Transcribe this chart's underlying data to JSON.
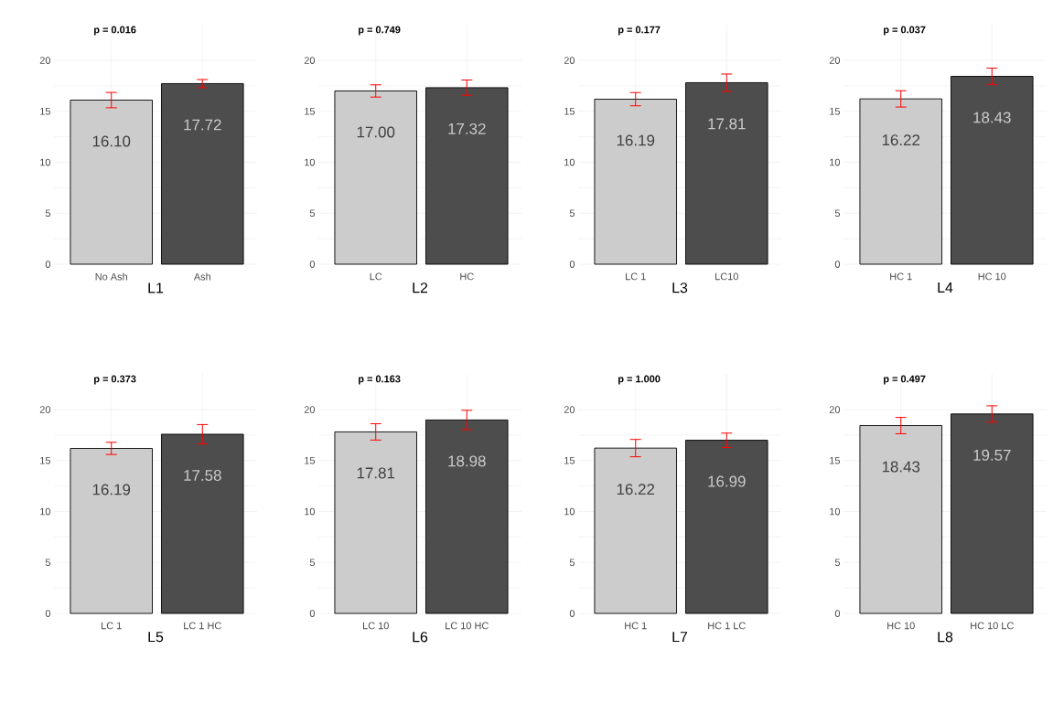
{
  "chart_data": [
    {
      "type": "bar",
      "categories": [
        "No Ash",
        "Ash"
      ],
      "values": [
        16.1,
        17.72
      ],
      "value_labels": [
        "16.10",
        "17.72"
      ],
      "colors": [
        "#cccccc",
        "#4d4d4d"
      ],
      "errors": [
        0.75,
        0.4
      ],
      "xlabel": "L1",
      "annotations": [
        "p = 0.016"
      ],
      "ylim": [
        0,
        23.5
      ],
      "yticks": [
        0,
        5,
        10,
        15,
        20
      ],
      "grid": true
    },
    {
      "type": "bar",
      "categories": [
        "LC",
        "HC"
      ],
      "values": [
        17.0,
        17.32
      ],
      "value_labels": [
        "17.00",
        "17.32"
      ],
      "colors": [
        "#cccccc",
        "#4d4d4d"
      ],
      "errors": [
        0.6,
        0.75
      ],
      "xlabel": "L2",
      "annotations": [
        "p = 0.749"
      ],
      "ylim": [
        0,
        23.5
      ],
      "yticks": [
        0,
        5,
        10,
        15,
        20
      ],
      "grid": true
    },
    {
      "type": "bar",
      "categories": [
        "LC 1",
        "LC10"
      ],
      "values": [
        16.19,
        17.81
      ],
      "value_labels": [
        "16.19",
        "17.81"
      ],
      "colors": [
        "#cccccc",
        "#4d4d4d"
      ],
      "errors": [
        0.65,
        0.85
      ],
      "xlabel": "L3",
      "annotations": [
        "p = 0.177"
      ],
      "ylim": [
        0,
        23.5
      ],
      "yticks": [
        0,
        5,
        10,
        15,
        20
      ],
      "grid": true
    },
    {
      "type": "bar",
      "categories": [
        "HC 1",
        "HC 10"
      ],
      "values": [
        16.22,
        18.43
      ],
      "value_labels": [
        "16.22",
        "18.43"
      ],
      "colors": [
        "#cccccc",
        "#4d4d4d"
      ],
      "errors": [
        0.8,
        0.8
      ],
      "xlabel": "L4",
      "annotations": [
        "p = 0.037"
      ],
      "ylim": [
        0,
        23.5
      ],
      "yticks": [
        0,
        5,
        10,
        15,
        20
      ],
      "grid": true
    },
    {
      "type": "bar",
      "categories": [
        "LC 1",
        "LC 1 HC"
      ],
      "values": [
        16.19,
        17.58
      ],
      "value_labels": [
        "16.19",
        "17.58"
      ],
      "colors": [
        "#cccccc",
        "#4d4d4d"
      ],
      "errors": [
        0.6,
        0.95
      ],
      "xlabel": "L5",
      "annotations": [
        "p = 0.373"
      ],
      "ylim": [
        0,
        23.5
      ],
      "yticks": [
        0,
        5,
        10,
        15,
        20
      ],
      "grid": true
    },
    {
      "type": "bar",
      "categories": [
        "LC 10",
        "LC 10 HC"
      ],
      "values": [
        17.81,
        18.98
      ],
      "value_labels": [
        "17.81",
        "18.98"
      ],
      "colors": [
        "#cccccc",
        "#4d4d4d"
      ],
      "errors": [
        0.8,
        0.95
      ],
      "xlabel": "L6",
      "annotations": [
        "p = 0.163"
      ],
      "ylim": [
        0,
        23.5
      ],
      "yticks": [
        0,
        5,
        10,
        15,
        20
      ],
      "grid": true
    },
    {
      "type": "bar",
      "categories": [
        "HC 1",
        "HC 1 LC"
      ],
      "values": [
        16.22,
        16.99
      ],
      "value_labels": [
        "16.22",
        "16.99"
      ],
      "colors": [
        "#cccccc",
        "#4d4d4d"
      ],
      "errors": [
        0.85,
        0.7
      ],
      "xlabel": "L7",
      "annotations": [
        "p = 1.000"
      ],
      "ylim": [
        0,
        23.5
      ],
      "yticks": [
        0,
        5,
        10,
        15,
        20
      ],
      "grid": true
    },
    {
      "type": "bar",
      "categories": [
        "HC 10",
        "HC 10 LC"
      ],
      "values": [
        18.43,
        19.57
      ],
      "value_labels": [
        "18.43",
        "19.57"
      ],
      "colors": [
        "#cccccc",
        "#4d4d4d"
      ],
      "errors": [
        0.8,
        0.8
      ],
      "xlabel": "L8",
      "annotations": [
        "p = 0.497"
      ],
      "ylim": [
        0,
        23.5
      ],
      "yticks": [
        0,
        5,
        10,
        15,
        20
      ],
      "grid": true
    }
  ]
}
